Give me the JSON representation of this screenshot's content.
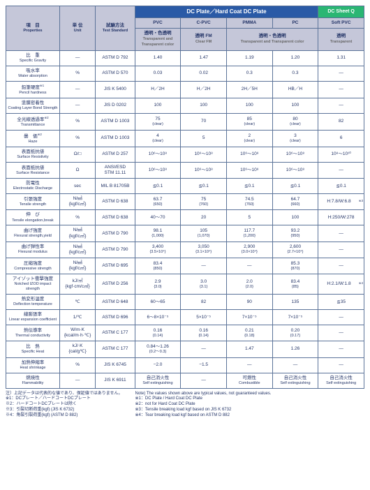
{
  "headers": {
    "col_prop_jp": "項　目",
    "col_prop_en": "Properties",
    "col_unit_jp": "単 位",
    "col_unit_en": "Unit",
    "col_test_jp": "試験方法",
    "col_test_en": "Test\nStandard",
    "group_dc": "DC Plate／Hard Coat DC Plate",
    "group_sheet": "DC Sheet Q",
    "mat1": "PVC",
    "mat2": "C-PVC",
    "mat3": "PMMA",
    "mat4": "PC",
    "mat5": "Soft PVC",
    "sub1_jp": "透明・色透明",
    "sub1_en": "Transparent and Transparent color",
    "sub2_jp": "透明 FM",
    "sub2_en": "Clear FM",
    "sub34_jp": "透明・色透明",
    "sub34_en": "Transparent and Transparent color",
    "sub5_jp": "透明",
    "sub5_en": "Transparent",
    "colors": {
      "pale": "#c5c7d9",
      "blue": "#2a5aa6",
      "green": "#2ab673",
      "border": "#5b7399",
      "text": "#223366"
    }
  },
  "rows": [
    {
      "jp": "比　重",
      "en": "Specific Gravity",
      "unit": "—",
      "test": "ASTM D 792",
      "v": [
        "1.40",
        "1.47",
        "1.19",
        "1.20",
        "1.31"
      ]
    },
    {
      "jp": "吸水率",
      "en": "Water absorption",
      "unit": "%",
      "test": "ASTM D 570",
      "v": [
        "0.03",
        "0.02",
        "0.3",
        "0.3",
        "—"
      ]
    },
    {
      "jp": "鉛筆硬度",
      "sup": "※1",
      "en": "Pencil hardness",
      "unit": "—",
      "test": "JIS K 5400",
      "v": [
        "H／2H",
        "H／2H",
        "2H／5H",
        "HB／H",
        "—"
      ]
    },
    {
      "jp": "塗膜密着性",
      "en": "Coating Layer Bond Strength",
      "unit": "—",
      "test": "JIS D 0202",
      "v": [
        "100",
        "100",
        "100",
        "100",
        "—"
      ]
    },
    {
      "jp": "全光線透過率",
      "sup": "※2",
      "en": "Transmittance",
      "unit": "%",
      "test": "ASTM D 1003",
      "v": [
        "75\n(clear)",
        "70",
        "85\n(clear)",
        "80\n(clear)",
        "82"
      ]
    },
    {
      "jp": "曇　価",
      "sup": "※2",
      "en": "Haze",
      "unit": "%",
      "test": "ASTM D 1003",
      "v": [
        "4\n(clear)",
        "5",
        "2\n(clear)",
        "3\n(clear)",
        "6"
      ]
    },
    {
      "jp": "表面抵抗値",
      "en": "Surface Resistivity",
      "unit": "Ω/□",
      "test": "ASTM D 257",
      "v": [
        "10⁶〜10⁸",
        "10⁶〜10⁸",
        "10⁶〜10⁸",
        "10⁶〜10⁸",
        "10⁸〜10¹⁰"
      ]
    },
    {
      "jp": "表面抵抗値",
      "en": "Surface Resistance",
      "unit": "Ω",
      "test": "ANSI/ESD\nSTM 11.11",
      "v": [
        "10⁶〜10⁸",
        "10⁶〜10⁸",
        "10⁶〜10⁸",
        "10⁶〜10⁸",
        "—"
      ]
    },
    {
      "jp": "防電性",
      "en": "Electrostatic Discharge",
      "unit": "sec",
      "test": "MIL B 81705B",
      "v": [
        "≦0.1",
        "≦0.1",
        "≦0.1",
        "≦0.1",
        "≦0.1"
      ]
    },
    {
      "jp": "引張強度",
      "en": "Tensile strength",
      "unit": "N/㎟\n{kgf/c㎡}",
      "test": "ASTM D 638",
      "v": [
        "63.7\n{650}",
        "75\n{760}",
        "74.5\n{760}",
        "64.7\n{660}",
        "H:7.8/W:6.8",
        "※3"
      ]
    },
    {
      "jp": "伸　び",
      "en": "Tensile elongation,break",
      "unit": "%",
      "test": "ASTM D 638",
      "v": [
        "40〜70",
        "20",
        "5",
        "100",
        "H:250/W:278"
      ]
    },
    {
      "jp": "曲げ強度",
      "en": "Flexural strength,yield",
      "unit": "N/㎟\n{kgf/c㎡}",
      "test": "ASTM D 790",
      "v": [
        "98.1\n{1,000}",
        "105\n{1,070}",
        "117.7\n{1,200}",
        "93.2\n{950}",
        "—"
      ]
    },
    {
      "jp": "曲げ弾性率",
      "en": "Flexural modulus",
      "unit": "N/㎟\n{kgf/c㎡}",
      "test": "ASTM D 790",
      "v": [
        "3,400\n{3.5×10⁴}",
        "3,050\n{3.1×10⁴}",
        "2,900\n{3.0×10⁴}",
        "2,600\n{2.7×10⁴}",
        "—"
      ]
    },
    {
      "jp": "圧縮強度",
      "en": "Compressive strength",
      "unit": "N/㎟\n{kgf/c㎡}",
      "test": "ASTM D 695",
      "v": [
        "83.4\n{850}",
        "—",
        "—",
        "85.3\n{870}",
        "—"
      ]
    },
    {
      "jp": "アイゾット衝撃強度",
      "en": "Notched IZOD impact strength",
      "unit": "kJ/㎡\n{kgf·cm/c㎡}",
      "test": "ASTM D 256",
      "v": [
        "2.9\n{3.0}",
        "3.0\n{3.1}",
        "2.0\n{2.0}",
        "83.4\n{85}",
        "H:2.1/W:1.8",
        "※4"
      ]
    },
    {
      "jp": "熱変形温度",
      "en": "Deflection temperature",
      "unit": "℃",
      "test": "ASTM D 648",
      "v": [
        "60〜65",
        "82",
        "90",
        "135",
        "≦35"
      ]
    },
    {
      "jp": "線膨張率",
      "en": "Linear expansion coefficient",
      "unit": "1/℃",
      "test": "ASTM D 696",
      "v": [
        "6〜8×10⁻⁵",
        "5×10⁻⁵",
        "7×10⁻⁵",
        "7×10⁻⁵",
        "—"
      ]
    },
    {
      "jp": "熱伝導率",
      "en": "Thermal conductivity",
      "unit": "W/m·K\n{kcal/m·h·℃}",
      "test": "ASTM C 177",
      "v": [
        "0.16\n{0.14}",
        "0.16\n{0.14}",
        "0.21\n{0.18}",
        "0.20\n{0.17}",
        "—"
      ]
    },
    {
      "jp": "比　熱",
      "en": "Specific Heat",
      "unit": "kJ/·K\n{cal/g℃}",
      "test": "ASTM C 177",
      "v": [
        "0.84〜1.26\n{0.2〜0.3}",
        "—",
        "1.47",
        "1.26",
        "—"
      ]
    },
    {
      "jp": "加熱伸縮率",
      "en": "Heat shrinkage",
      "unit": "%",
      "test": "JIS K 6745",
      "v": [
        "−2.0",
        "−1.5",
        "—",
        "—",
        "—"
      ]
    },
    {
      "jp": "燃焼性",
      "en": "Flammability",
      "unit": "—",
      "test": "JIS K 6911",
      "v": [
        "自己消火性\nSelf extinguishing",
        "—",
        "可燃性\nCombustible",
        "自己消火性\nSelf extinguishing",
        "自己消火性\nSelf extinguishing"
      ]
    }
  ],
  "notes": {
    "left": [
      "注）上記データは代表的な値であり、保証値ではありません。",
      "※1：DCプレート／ハードコートDCプレート",
      "※2：ハードコートDCプレートは除く",
      "※3：引裂切断荷重(kgf) (JIS K 6732)",
      "※4：角裂引裂荷重(kgf) (ASTM D 882)"
    ],
    "right": [
      "Note) The values shown above are typical values, not guaranteed values.",
      "※1：DC Plate / Hard Coat DC Plate",
      "※2：not for Hard Coat DC Plate",
      "※3：Tensile breaking load kgf based on JIS K 6732",
      "※4：Tear breaking load kgf based on ASTM D 882"
    ]
  }
}
